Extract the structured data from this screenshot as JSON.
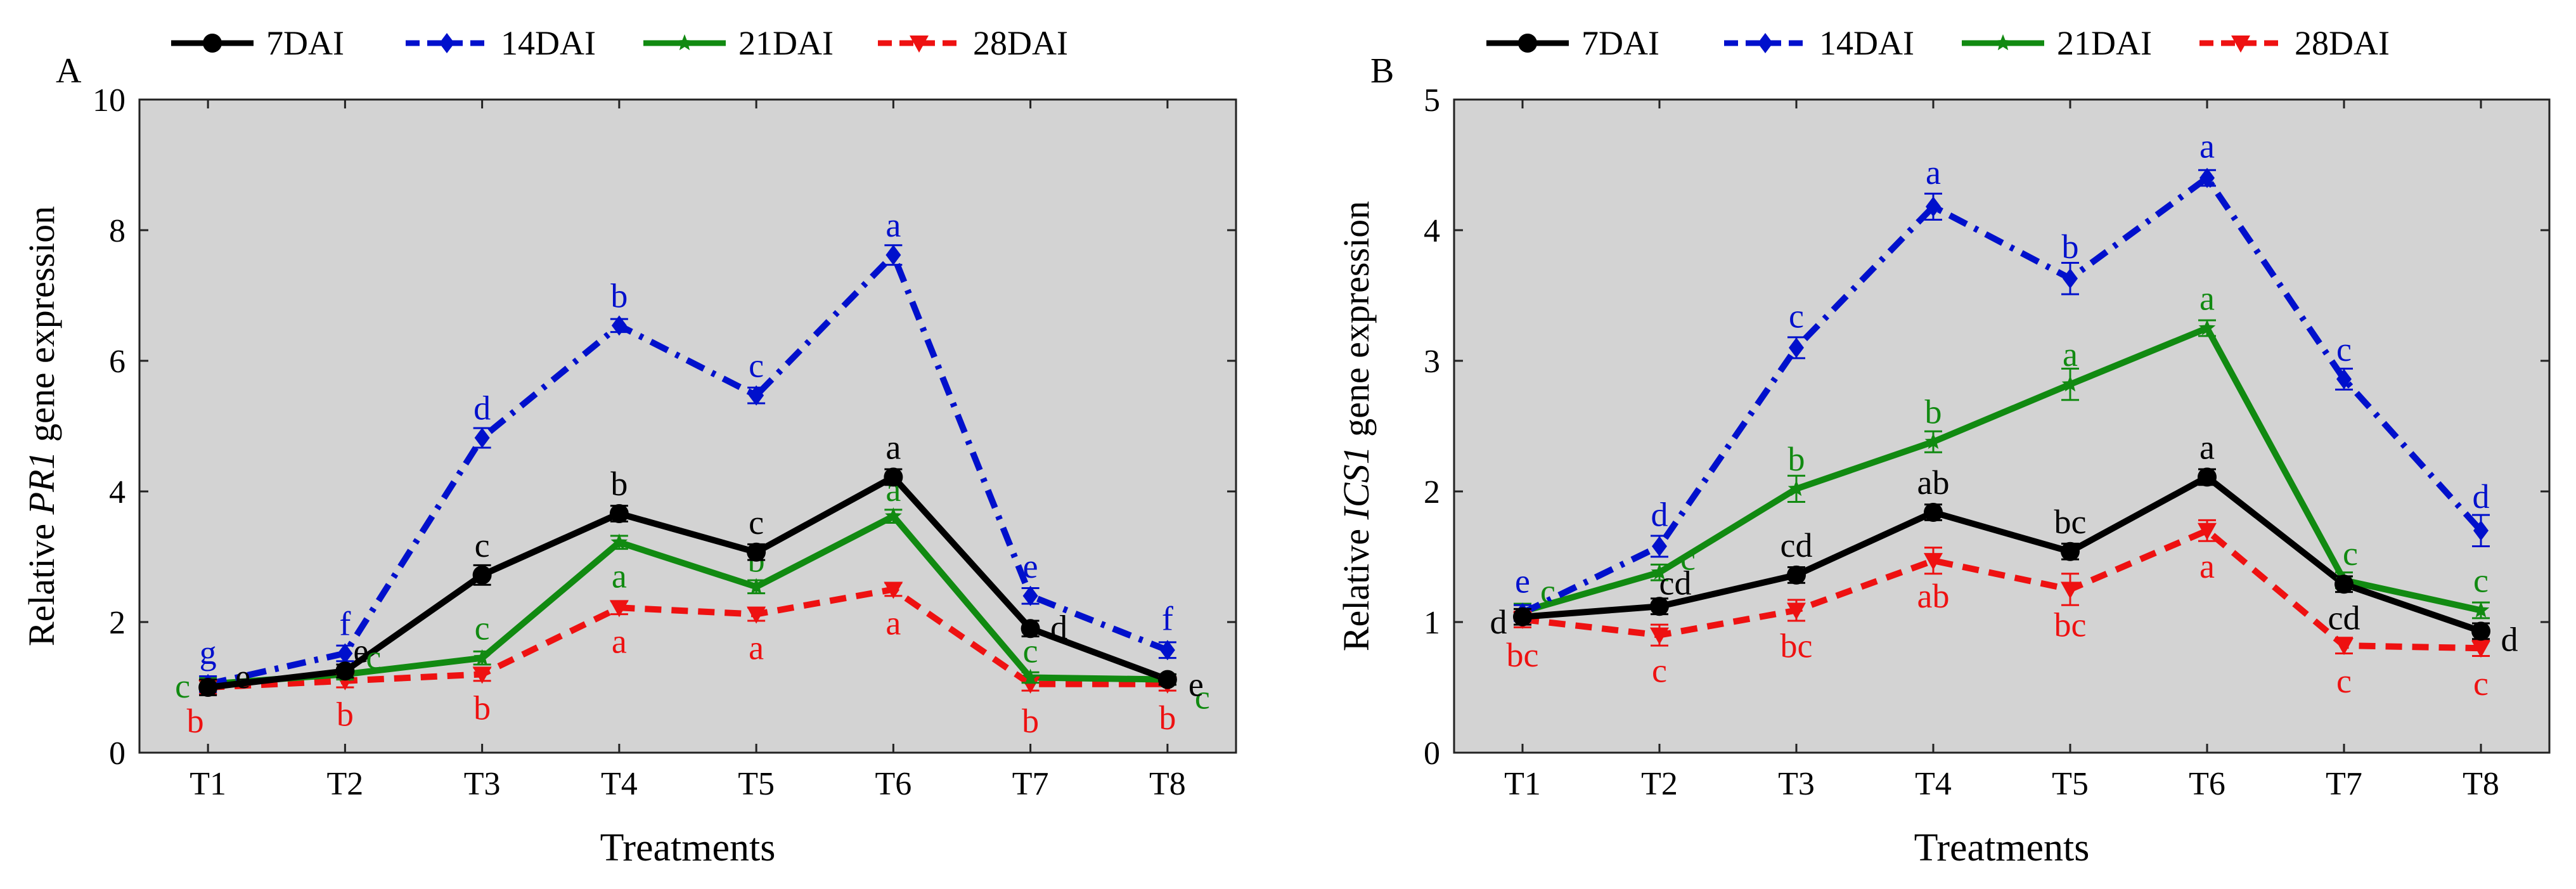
{
  "series_styles": [
    {
      "color": "#000000",
      "dash": "",
      "marker": "circle"
    },
    {
      "color": "#0010cc",
      "dash": "30 14 6 14",
      "marker": "diamond"
    },
    {
      "color": "#118a11",
      "dash": "",
      "marker": "star"
    },
    {
      "color": "#ee1111",
      "dash": "26 16",
      "marker": "triangle-down"
    }
  ],
  "chart_data": [
    {
      "type": "line",
      "panel_label": "A",
      "title": "",
      "xlabel": "Treatments",
      "ylabel_prefix": "Relative ",
      "ylabel_gene": "PR1",
      "ylabel_suffix": " gene expression",
      "categories": [
        "T1",
        "T2",
        "T3",
        "T4",
        "T5",
        "T6",
        "T7",
        "T8"
      ],
      "ylim": [
        0,
        10
      ],
      "yticks": [
        0,
        2,
        4,
        6,
        8,
        10
      ],
      "legend": "top",
      "grid": false,
      "series": [
        {
          "name": "7DAI",
          "values": [
            1.0,
            1.25,
            2.72,
            3.66,
            3.07,
            4.22,
            1.9,
            1.12
          ],
          "errors": [
            0.12,
            0.1,
            0.15,
            0.12,
            0.12,
            0.12,
            0.12,
            0.08
          ],
          "letters": [
            "e",
            "e",
            "c",
            "b",
            "c",
            "a",
            "d",
            "e"
          ]
        },
        {
          "name": "14DAI",
          "values": [
            1.05,
            1.52,
            4.82,
            6.54,
            5.47,
            7.62,
            2.4,
            1.57
          ],
          "errors": [
            0.12,
            0.12,
            0.15,
            0.1,
            0.12,
            0.15,
            0.12,
            0.12
          ],
          "letters": [
            "g",
            "f",
            "d",
            "b",
            "c",
            "a",
            "e",
            "f"
          ]
        },
        {
          "name": "21DAI",
          "values": [
            1.05,
            1.2,
            1.45,
            3.22,
            2.54,
            3.62,
            1.15,
            1.12
          ],
          "errors": [
            0.1,
            0.08,
            0.1,
            0.1,
            0.1,
            0.1,
            0.08,
            0.08
          ],
          "letters": [
            "c",
            "c",
            "c",
            "a",
            "b",
            "a",
            "c",
            "c"
          ]
        },
        {
          "name": "28DAI",
          "values": [
            1.0,
            1.1,
            1.2,
            2.22,
            2.12,
            2.5,
            1.05,
            1.05
          ],
          "errors": [
            0.1,
            0.1,
            0.1,
            0.1,
            0.1,
            0.1,
            0.1,
            0.1
          ],
          "letters": [
            "b",
            "b",
            "b",
            "a",
            "a",
            "a",
            "b",
            "b"
          ]
        }
      ]
    },
    {
      "type": "line",
      "panel_label": "B",
      "title": "",
      "xlabel": "Treatments",
      "ylabel_prefix": "Relative ",
      "ylabel_gene": "ICS1",
      "ylabel_suffix": " gene expression",
      "categories": [
        "T1",
        "T2",
        "T3",
        "T4",
        "T5",
        "T6",
        "T7",
        "T8"
      ],
      "ylim": [
        0,
        5
      ],
      "yticks": [
        0,
        1,
        2,
        3,
        4,
        5
      ],
      "legend": "top",
      "grid": false,
      "series": [
        {
          "name": "7DAI",
          "values": [
            1.04,
            1.12,
            1.36,
            1.84,
            1.54,
            2.11,
            1.29,
            0.93
          ],
          "errors": [
            0.06,
            0.06,
            0.06,
            0.06,
            0.06,
            0.06,
            0.06,
            0.06
          ],
          "letters": [
            "d",
            "cd",
            "cd",
            "ab",
            "bc",
            "a",
            "cd",
            "d"
          ]
        },
        {
          "name": "14DAI",
          "values": [
            1.07,
            1.58,
            3.1,
            4.18,
            3.63,
            4.4,
            2.86,
            1.7
          ],
          "errors": [
            0.06,
            0.08,
            0.08,
            0.1,
            0.12,
            0.06,
            0.08,
            0.12
          ],
          "letters": [
            "e",
            "d",
            "c",
            "a",
            "b",
            "a",
            "c",
            "d"
          ]
        },
        {
          "name": "21DAI",
          "values": [
            1.08,
            1.38,
            2.02,
            2.38,
            2.82,
            3.25,
            1.32,
            1.09
          ],
          "errors": [
            0.06,
            0.06,
            0.1,
            0.08,
            0.12,
            0.06,
            0.06,
            0.06
          ],
          "letters": [
            "c",
            "c",
            "b",
            "b",
            "a",
            "a",
            "c",
            "c"
          ]
        },
        {
          "name": "28DAI",
          "values": [
            1.02,
            0.9,
            1.09,
            1.47,
            1.25,
            1.7,
            0.82,
            0.8
          ],
          "errors": [
            0.06,
            0.08,
            0.08,
            0.1,
            0.12,
            0.08,
            0.06,
            0.06
          ],
          "letters": [
            "bc",
            "c",
            "bc",
            "ab",
            "bc",
            "a",
            "c",
            "c"
          ]
        }
      ]
    }
  ]
}
